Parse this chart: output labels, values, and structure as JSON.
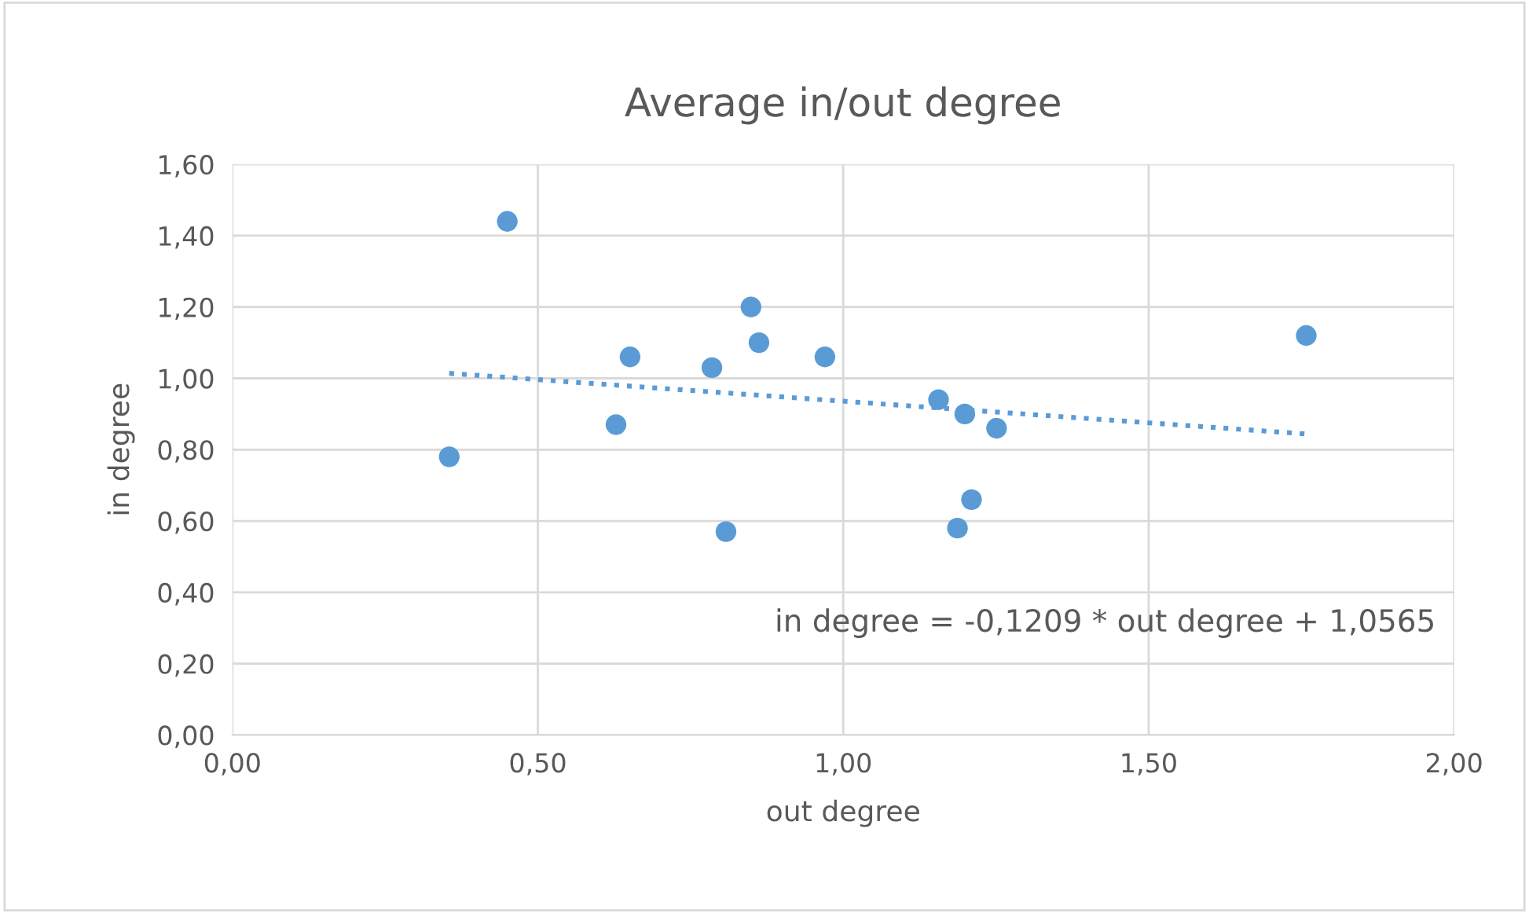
{
  "chart_data": {
    "type": "scatter",
    "title": "Average in/out degree",
    "xlabel": "out degree",
    "ylabel": "in degree",
    "series": [
      {
        "color": "#5b9bd5",
        "marker": "circle",
        "x": [
          0.355,
          0.45,
          0.628,
          0.651,
          0.785,
          0.808,
          0.849,
          0.862,
          0.97,
          1.156,
          1.187,
          1.199,
          1.21,
          1.251,
          1.758
        ],
        "values": [
          0.78,
          1.44,
          0.87,
          1.06,
          1.03,
          0.57,
          1.2,
          1.1,
          1.06,
          0.94,
          0.58,
          0.9,
          0.66,
          0.86,
          1.12
        ]
      },
      {
        "type": "line",
        "color": "#5b9bd5",
        "line_style": "dotted",
        "marker": "none",
        "x": [
          0.355,
          1.758
        ],
        "values": [
          1.014,
          0.844
        ]
      }
    ],
    "annotations": [
      "in degree = -0,1209 * out degree + 1,0565"
    ],
    "xlim": [
      0,
      2
    ],
    "ylim": [
      0,
      1.6
    ],
    "xticks": [
      {
        "value": 0,
        "label": "0,00"
      },
      {
        "value": 0.5,
        "label": "0,50"
      },
      {
        "value": 1,
        "label": "1,00"
      },
      {
        "value": 1.5,
        "label": "1,50"
      },
      {
        "value": 2,
        "label": "2,00"
      }
    ],
    "yticks": [
      {
        "value": 0,
        "label": "0,00"
      },
      {
        "value": 0.2,
        "label": "0,20"
      },
      {
        "value": 0.4,
        "label": "0,40"
      },
      {
        "value": 0.6,
        "label": "0,60"
      },
      {
        "value": 0.8,
        "label": "0,80"
      },
      {
        "value": 1.0,
        "label": "1,00"
      },
      {
        "value": 1.2,
        "label": "1,20"
      },
      {
        "value": 1.4,
        "label": "1,40"
      },
      {
        "value": 1.6,
        "label": "1,60"
      }
    ],
    "grid": true,
    "legend": false
  }
}
